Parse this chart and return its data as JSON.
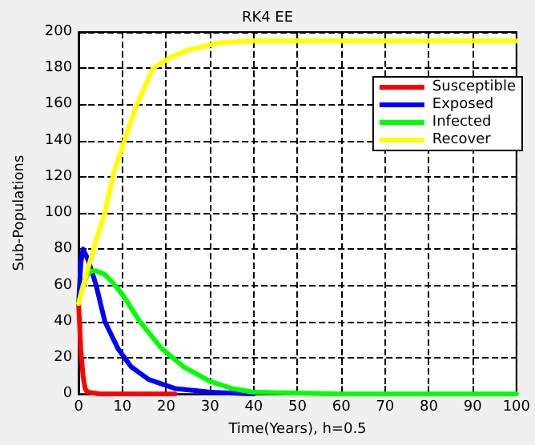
{
  "chart_data": {
    "type": "line",
    "title": "RK4 EE",
    "xlabel": "Time(Years), h=0.5",
    "ylabel": "Sub-Populations",
    "xlim": [
      0,
      100
    ],
    "ylim": [
      0,
      200
    ],
    "xticks": [
      0,
      10,
      20,
      30,
      40,
      50,
      60,
      70,
      80,
      90,
      100
    ],
    "yticks": [
      0,
      20,
      40,
      60,
      80,
      100,
      120,
      140,
      160,
      180,
      200
    ],
    "grid": true,
    "legend": "top right",
    "line_style": "solid",
    "marker": "none",
    "series": [
      {
        "name": "Susceptible",
        "color": "#ff0000",
        "x": [
          0,
          0.5,
          1,
          1.5,
          2,
          5,
          10,
          22
        ],
        "values": [
          50,
          25,
          10,
          3,
          1,
          0,
          0,
          0
        ]
      },
      {
        "name": "Exposed",
        "color": "#0000ff",
        "x": [
          0,
          0.5,
          1,
          2,
          3,
          4,
          6,
          9,
          12,
          16,
          22,
          30,
          40
        ],
        "values": [
          50,
          72,
          80,
          75,
          68,
          60,
          40,
          25,
          15,
          8,
          3,
          1,
          0
        ]
      },
      {
        "name": "Infected",
        "color": "#00ff00",
        "x": [
          0,
          1,
          2,
          3,
          4,
          6,
          8,
          10,
          14,
          19,
          24,
          30,
          35,
          40,
          60,
          80,
          100
        ],
        "values": [
          50,
          60,
          66,
          68,
          68,
          66,
          61,
          55,
          40,
          25,
          15,
          7,
          3,
          1,
          0,
          0,
          0
        ]
      },
      {
        "name": "Recover",
        "color": "#ffff00",
        "x": [
          0,
          2,
          4,
          6,
          8,
          10.5,
          13,
          17,
          21,
          25,
          32,
          40,
          60,
          80,
          100
        ],
        "values": [
          50,
          68,
          85,
          100,
          122,
          140,
          158,
          180,
          186,
          190,
          194,
          195,
          195,
          195,
          195
        ]
      }
    ]
  }
}
